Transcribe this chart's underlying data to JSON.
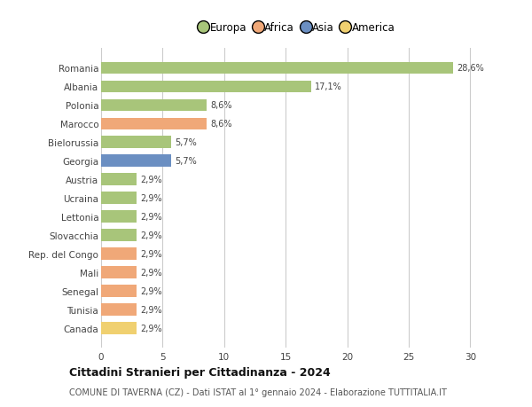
{
  "categories": [
    "Romania",
    "Albania",
    "Polonia",
    "Marocco",
    "Bielorussia",
    "Georgia",
    "Austria",
    "Ucraina",
    "Lettonia",
    "Slovacchia",
    "Rep. del Congo",
    "Mali",
    "Senegal",
    "Tunisia",
    "Canada"
  ],
  "values": [
    28.6,
    17.1,
    8.6,
    8.6,
    5.7,
    5.7,
    2.9,
    2.9,
    2.9,
    2.9,
    2.9,
    2.9,
    2.9,
    2.9,
    2.9
  ],
  "labels": [
    "28,6%",
    "17,1%",
    "8,6%",
    "8,6%",
    "5,7%",
    "5,7%",
    "2,9%",
    "2,9%",
    "2,9%",
    "2,9%",
    "2,9%",
    "2,9%",
    "2,9%",
    "2,9%",
    "2,9%"
  ],
  "colors": [
    "#a8c57a",
    "#a8c57a",
    "#a8c57a",
    "#f0a878",
    "#a8c57a",
    "#6b8fc2",
    "#a8c57a",
    "#a8c57a",
    "#a8c57a",
    "#a8c57a",
    "#f0a878",
    "#f0a878",
    "#f0a878",
    "#f0a878",
    "#f0d070"
  ],
  "legend": {
    "Europa": "#a8c57a",
    "Africa": "#f0a878",
    "Asia": "#6b8fc2",
    "America": "#f0d070"
  },
  "xlim": [
    0,
    32
  ],
  "xticks": [
    0,
    5,
    10,
    15,
    20,
    25,
    30
  ],
  "title": "Cittadini Stranieri per Cittadinanza - 2024",
  "subtitle": "COMUNE DI TAVERNA (CZ) - Dati ISTAT al 1° gennaio 2024 - Elaborazione TUTTITALIA.IT",
  "background_color": "#ffffff",
  "grid_color": "#cccccc",
  "bar_height": 0.65
}
